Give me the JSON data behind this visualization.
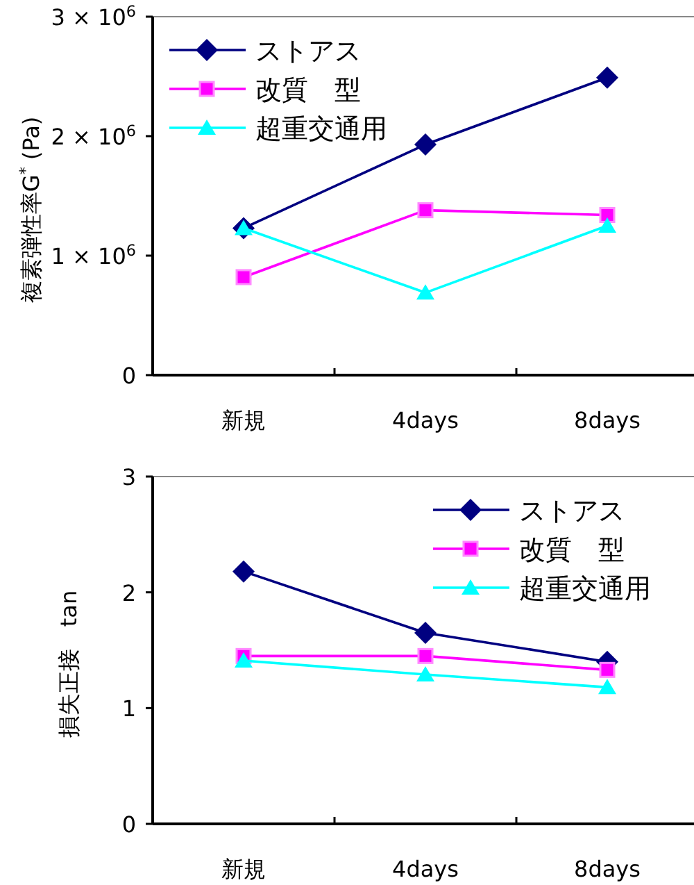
{
  "chart_data": [
    {
      "type": "line",
      "ylabel": "複素弾性率G$^{*}$ (Pa)",
      "categories": [
        "新規",
        "4days",
        "8days"
      ],
      "series": [
        {
          "name": "ストアス",
          "color": "#000080",
          "marker": "diamond",
          "values": [
            1230000,
            1930000,
            2490000
          ]
        },
        {
          "name": "改質　型",
          "color": "#ff00ff",
          "marker": "square",
          "values": [
            820000,
            1380000,
            1340000
          ]
        },
        {
          "name": "超重交通用",
          "color": "#00ffff",
          "marker": "triangle",
          "values": [
            1230000,
            690000,
            1250000
          ]
        }
      ],
      "ylim": [
        0,
        3000000
      ],
      "yticks": [
        {
          "value": 0,
          "label": "0"
        },
        {
          "value": 1000000,
          "label": "1 × 10$^{6}$"
        },
        {
          "value": 2000000,
          "label": "2 × 10$^{6}$"
        },
        {
          "value": 3000000,
          "label": "3 × 10$^{6}$"
        }
      ],
      "legend": "top left",
      "grid": false
    },
    {
      "type": "line",
      "ylabel": "損失正接　tan",
      "categories": [
        "新規",
        "4days",
        "8days"
      ],
      "series": [
        {
          "name": "ストアス",
          "color": "#000080",
          "marker": "diamond",
          "values": [
            2.18,
            1.65,
            1.4
          ]
        },
        {
          "name": "改質　型",
          "color": "#ff00ff",
          "marker": "square",
          "values": [
            1.45,
            1.45,
            1.33
          ]
        },
        {
          "name": "超重交通用",
          "color": "#00ffff",
          "marker": "triangle",
          "values": [
            1.41,
            1.29,
            1.18
          ]
        }
      ],
      "ylim": [
        0,
        3
      ],
      "yticks": [
        0,
        1,
        2,
        3
      ],
      "legend": "top right",
      "grid": false
    }
  ]
}
